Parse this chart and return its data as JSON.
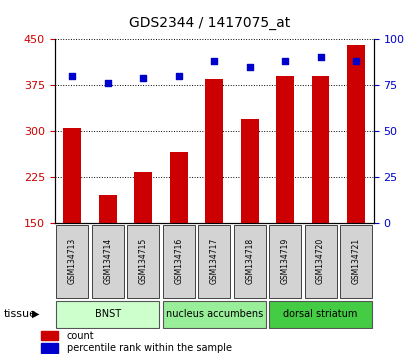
{
  "title": "GDS2344 / 1417075_at",
  "samples": [
    "GSM134713",
    "GSM134714",
    "GSM134715",
    "GSM134716",
    "GSM134717",
    "GSM134718",
    "GSM134719",
    "GSM134720",
    "GSM134721"
  ],
  "counts": [
    305,
    195,
    233,
    265,
    385,
    320,
    390,
    390,
    440
  ],
  "percentiles": [
    80,
    76,
    79,
    80,
    88,
    85,
    88,
    90,
    88
  ],
  "ymin": 150,
  "ymax": 450,
  "yticks": [
    150,
    225,
    300,
    375,
    450
  ],
  "y2ticks": [
    0,
    25,
    50,
    75,
    100
  ],
  "bar_color": "#cc0000",
  "dot_color": "#0000cc",
  "groups": [
    {
      "label": "BNST",
      "start": 0,
      "end": 3,
      "color": "#ccffcc"
    },
    {
      "label": "nucleus accumbens",
      "start": 3,
      "end": 6,
      "color": "#99ee99"
    },
    {
      "label": "dorsal striatum",
      "start": 6,
      "end": 9,
      "color": "#44cc44"
    }
  ],
  "ylabel_left_color": "#cc0000",
  "ylabel_right_color": "#0000cc",
  "tissue_label": "tissue",
  "legend_items": [
    {
      "label": "count",
      "color": "#cc0000"
    },
    {
      "label": "percentile rank within the sample",
      "color": "#0000cc"
    }
  ],
  "background_color": "#ffffff"
}
